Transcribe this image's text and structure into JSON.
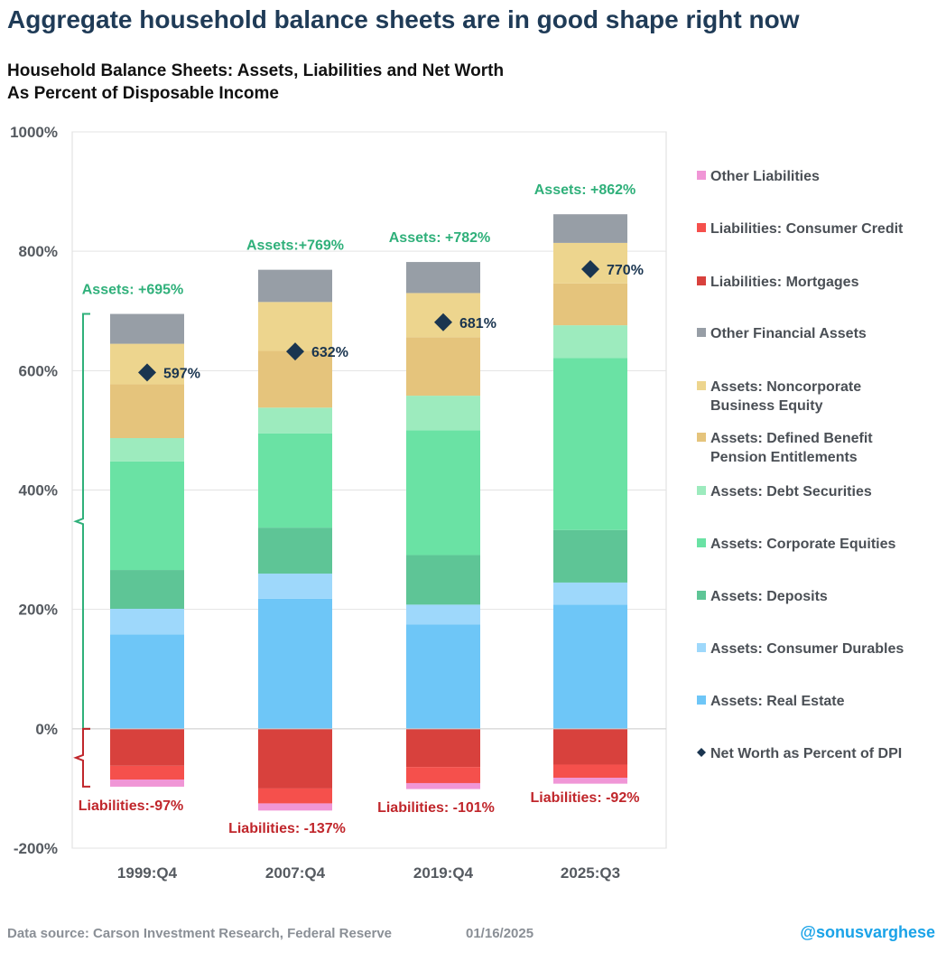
{
  "header": {
    "headline": "Aggregate household balance sheets are in good shape right now",
    "subtitle_line1": "Household Balance Sheets: Assets, Liabilities and Net Worth",
    "subtitle_line2": "As Percent of Disposable Income"
  },
  "footer": {
    "source": "Data source: Carson Investment Research, Federal Reserve",
    "date": "01/16/2025",
    "handle": "@sonusvarghese"
  },
  "chart_data": {
    "type": "bar",
    "stacked": true,
    "title": "Household Balance Sheets: Assets, Liabilities and Net Worth As Percent of Disposable Income",
    "categories": [
      "1999:Q4",
      "2007:Q4",
      "2019:Q4",
      "2025:Q3"
    ],
    "ylim": [
      -200,
      1000
    ],
    "yticks": [
      -200,
      0,
      200,
      400,
      600,
      800,
      1000
    ],
    "ytick_labels": [
      "-200%",
      "0%",
      "200%",
      "400%",
      "600%",
      "800%",
      "1000%"
    ],
    "grid": true,
    "legend_position": "right",
    "series": [
      {
        "name": "Assets: Real Estate",
        "color": "#6ec6f7",
        "values": [
          158,
          218,
          175,
          208
        ]
      },
      {
        "name": "Assets: Consumer Durables",
        "color": "#9ed8fb",
        "values": [
          43,
          42,
          33,
          37
        ]
      },
      {
        "name": "Assets: Deposits",
        "color": "#5ec596",
        "values": [
          65,
          77,
          83,
          88
        ]
      },
      {
        "name": "Assets: Corporate Equities",
        "color": "#6ae2a4",
        "values": [
          182,
          158,
          209,
          288
        ]
      },
      {
        "name": "Assets: Debt Securities",
        "color": "#9debbe",
        "values": [
          39,
          43,
          58,
          55
        ]
      },
      {
        "name": "Assets: Defined Benefit Pension Entitlements",
        "color": "#e5c47c",
        "values": [
          90,
          95,
          98,
          70
        ]
      },
      {
        "name": "Assets: Noncorporate Business Equity",
        "color": "#edd58e",
        "values": [
          68,
          82,
          74,
          68
        ]
      },
      {
        "name": "Other Financial Assets",
        "color": "#979ea6",
        "values": [
          50,
          54,
          52,
          48
        ]
      },
      {
        "name": "Liabilities: Mortgages",
        "color": "#d8413d",
        "values": [
          -62,
          -100,
          -64,
          -60
        ]
      },
      {
        "name": "Liabilities: Consumer Credit",
        "color": "#f5504c",
        "values": [
          -23,
          -25,
          -27,
          -22
        ]
      },
      {
        "name": "Other Liabilities",
        "color": "#f096d6",
        "values": [
          -12,
          -12,
          -10,
          -10
        ]
      }
    ],
    "net_worth": {
      "name": "Net Worth as Percent of DPI",
      "values": [
        597,
        632,
        681,
        770
      ],
      "labels": [
        "597%",
        "632%",
        "681%",
        "770%"
      ],
      "color": "#1a3550"
    },
    "asset_labels": [
      "Assets: +695%",
      "Assets:+769%",
      "Assets: +782%",
      "Assets: +862%"
    ],
    "asset_totals": [
      695,
      769,
      782,
      862
    ],
    "liability_labels": [
      "Liabilities:-97%",
      "Liabilities: -137%",
      "Liabilities: -101%",
      "Liabilities: -92%"
    ],
    "liability_totals": [
      -97,
      -137,
      -101,
      -92
    ],
    "asset_label_color": "#2fb07a",
    "liability_label_color": "#c0262b",
    "legend": [
      {
        "label": "Other Liabilities",
        "color": "#f096d6",
        "marker": "square"
      },
      {
        "label": "Liabilities: Consumer Credit",
        "color": "#f5504c",
        "marker": "square"
      },
      {
        "label": "Liabilities: Mortgages",
        "color": "#d8413d",
        "marker": "square"
      },
      {
        "label": "Other Financial Assets",
        "color": "#979ea6",
        "marker": "square"
      },
      {
        "label": "Assets: Noncorporate Business Equity",
        "color": "#edd58e",
        "marker": "square"
      },
      {
        "label": "Assets: Defined Benefit Pension Entitlements",
        "color": "#e5c47c",
        "marker": "square"
      },
      {
        "label": "Assets: Debt Securities",
        "color": "#9debbe",
        "marker": "square"
      },
      {
        "label": "Assets: Corporate Equities",
        "color": "#6ae2a4",
        "marker": "square"
      },
      {
        "label": "Assets: Deposits",
        "color": "#5ec596",
        "marker": "square"
      },
      {
        "label": "Assets: Consumer Durables",
        "color": "#9ed8fb",
        "marker": "square"
      },
      {
        "label": "Assets: Real Estate",
        "color": "#6ec6f7",
        "marker": "square"
      },
      {
        "label": "Net Worth as Percent of DPI",
        "color": "#1a3550",
        "marker": "diamond"
      }
    ]
  }
}
